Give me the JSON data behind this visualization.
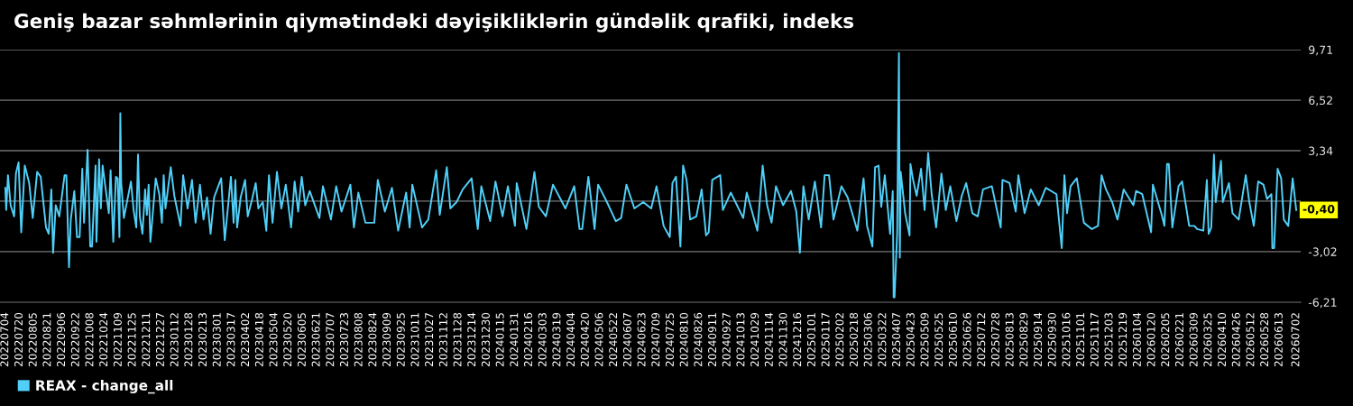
{
  "chart_data": {
    "type": "line",
    "title": "Geniş bazar səhmlərinin qiymətindəki dəyişikliklərin gündəlik qrafiki, indeks",
    "x": [
      "2022-07-04",
      "2022-07-05",
      "2022-07-07",
      "2022-07-10",
      "2022-07-14",
      "2022-07-16",
      "2022-07-19",
      "2022-07-22",
      "2022-07-26",
      "2022-07-31",
      "2022-08-04",
      "2022-08-09",
      "2022-08-13",
      "2022-08-19",
      "2022-08-22",
      "2022-08-25",
      "2022-08-27",
      "2022-08-30",
      "2022-09-03",
      "2022-09-09",
      "2022-09-11",
      "2022-09-14",
      "2022-09-16",
      "2022-09-20",
      "2022-09-23",
      "2022-09-26",
      "2022-09-29",
      "2022-10-01",
      "2022-10-05",
      "2022-10-08",
      "2022-10-10",
      "2022-10-14",
      "2022-10-15",
      "2022-10-18",
      "2022-10-20",
      "2022-10-22",
      "2022-10-29",
      "2022-10-31",
      "2022-11-03",
      "2022-11-06",
      "2022-11-08",
      "2022-11-10",
      "2022-11-11",
      "2022-11-12",
      "2022-11-15",
      "2022-11-23",
      "2022-11-26",
      "2022-11-29",
      "2022-12-01",
      "2022-12-03",
      "2022-12-06",
      "2022-12-09",
      "2022-12-11",
      "2022-12-13",
      "2022-12-15",
      "2022-12-21",
      "2022-12-25",
      "2022-12-28",
      "2022-12-30",
      "2023-01-01",
      "2023-01-07",
      "2023-01-11",
      "2023-01-18",
      "2023-01-21",
      "2023-01-26",
      "2023-01-31",
      "2023-02-04",
      "2023-02-09",
      "2023-02-13",
      "2023-02-17",
      "2023-02-21",
      "2023-02-25",
      "2023-03-05",
      "2023-03-09",
      "2023-03-16",
      "2023-03-19",
      "2023-03-21",
      "2023-03-23",
      "2023-03-27",
      "2023-04-01",
      "2023-04-04",
      "2023-04-09",
      "2023-04-13",
      "2023-04-16",
      "2023-04-21",
      "2023-04-25",
      "2023-04-28",
      "2023-05-02",
      "2023-05-07",
      "2023-05-12",
      "2023-05-17",
      "2023-05-23",
      "2023-05-27",
      "2023-05-31",
      "2023-06-04",
      "2023-06-08",
      "2023-06-13",
      "2023-06-24",
      "2023-06-28",
      "2023-07-07",
      "2023-07-13",
      "2023-07-19",
      "2023-07-29",
      "2023-08-02",
      "2023-08-07",
      "2023-08-15",
      "2023-08-25",
      "2023-08-29",
      "2023-09-06",
      "2023-09-14",
      "2023-09-21",
      "2023-09-30",
      "2023-10-04",
      "2023-10-07",
      "2023-10-18",
      "2023-10-25",
      "2023-11-03",
      "2023-11-07",
      "2023-11-15",
      "2023-11-19",
      "2023-11-26",
      "2023-12-03",
      "2023-12-13",
      "2023-12-20",
      "2023-12-24",
      "2024-01-03",
      "2024-01-09",
      "2024-01-17",
      "2024-01-23",
      "2024-01-31",
      "2024-02-02",
      "2024-02-13",
      "2024-02-22",
      "2024-02-27",
      "2024-03-06",
      "2024-03-14",
      "2024-03-28",
      "2024-04-07",
      "2024-04-13",
      "2024-04-16",
      "2024-04-23",
      "2024-04-30",
      "2024-05-04",
      "2024-05-14",
      "2024-05-24",
      "2024-05-30",
      "2024-06-05",
      "2024-06-14",
      "2024-06-24",
      "2024-07-03",
      "2024-07-09",
      "2024-07-17",
      "2024-07-24",
      "2024-07-27",
      "2024-07-31",
      "2024-08-05",
      "2024-08-08",
      "2024-08-12",
      "2024-08-16",
      "2024-08-23",
      "2024-08-29",
      "2024-09-03",
      "2024-09-06",
      "2024-09-10",
      "2024-09-19",
      "2024-09-22",
      "2024-10-01",
      "2024-10-15",
      "2024-10-19",
      "2024-10-31",
      "2024-11-06",
      "2024-11-11",
      "2024-11-16",
      "2024-11-21",
      "2024-11-29",
      "2024-12-08",
      "2024-12-14",
      "2024-12-18",
      "2024-12-22",
      "2024-12-28",
      "2025-01-04",
      "2025-01-11",
      "2025-01-15",
      "2025-01-20",
      "2025-01-25",
      "2025-02-03",
      "2025-02-10",
      "2025-02-21",
      "2025-02-28",
      "2025-03-04",
      "2025-03-10",
      "2025-03-13",
      "2025-03-17",
      "2025-03-20",
      "2025-03-24",
      "2025-03-30",
      "2025-04-02",
      "2025-04-03",
      "2025-04-04",
      "2025-04-07",
      "2025-04-09",
      "2025-04-10",
      "2025-04-11",
      "2025-04-16",
      "2025-04-21",
      "2025-04-22",
      "2025-04-25",
      "2025-04-29",
      "2025-05-04",
      "2025-05-08",
      "2025-05-12",
      "2025-05-16",
      "2025-05-21",
      "2025-05-27",
      "2025-06-01",
      "2025-06-06",
      "2025-06-13",
      "2025-06-19",
      "2025-06-24",
      "2025-07-01",
      "2025-07-07",
      "2025-07-13",
      "2025-07-23",
      "2025-08-02",
      "2025-08-04",
      "2025-08-12",
      "2025-08-19",
      "2025-08-22",
      "2025-08-29",
      "2025-09-05",
      "2025-09-14",
      "2025-09-22",
      "2025-10-04",
      "2025-10-10",
      "2025-10-13",
      "2025-10-16",
      "2025-10-20",
      "2025-10-27",
      "2025-11-04",
      "2025-11-13",
      "2025-11-20",
      "2025-11-24",
      "2025-11-29",
      "2025-12-06",
      "2025-12-12",
      "2025-12-19",
      "2025-12-30",
      "2026-01-02",
      "2026-01-09",
      "2026-01-19",
      "2026-01-21",
      "2026-01-31",
      "2026-02-03",
      "2026-02-06",
      "2026-02-08",
      "2026-02-12",
      "2026-02-19",
      "2026-02-23",
      "2026-03-03",
      "2026-03-09",
      "2026-03-12",
      "2026-03-19",
      "2026-03-23",
      "2026-03-25",
      "2026-03-28",
      "2026-03-31",
      "2026-04-02",
      "2026-04-08",
      "2026-04-10",
      "2026-04-17",
      "2026-04-21",
      "2026-04-28",
      "2026-05-06",
      "2026-05-10",
      "2026-05-15",
      "2026-05-20",
      "2026-05-26",
      "2026-05-30",
      "2026-06-04",
      "2026-06-05",
      "2026-06-07",
      "2026-06-11",
      "2026-06-15",
      "2026-06-18",
      "2026-06-23",
      "2026-06-28",
      "2026-07-02"
    ],
    "series": [
      {
        "name": "REAX - change_all",
        "color": "#50d0f8",
        "values": [
          1.0,
          -0.4,
          1.8,
          -0.1,
          -0.8,
          1.9,
          2.6,
          -1.8,
          2.4,
          1.3,
          -0.9,
          2.0,
          1.7,
          -1.5,
          -1.9,
          0.9,
          -3.1,
          -0.1,
          -0.8,
          1.8,
          1.8,
          -4.0,
          -1.0,
          0.8,
          -2.1,
          -2.1,
          2.2,
          -1.2,
          3.4,
          -2.7,
          -2.7,
          2.4,
          -2.4,
          2.8,
          -0.3,
          2.4,
          -0.6,
          2.1,
          -2.4,
          1.7,
          1.6,
          -2.1,
          5.7,
          1.3,
          -0.9,
          1.4,
          -0.4,
          -1.5,
          3.1,
          -0.8,
          -1.9,
          0.9,
          -0.7,
          1.2,
          -2.4,
          1.6,
          0.6,
          -1.2,
          1.8,
          -0.3,
          2.3,
          0.5,
          -1.4,
          1.8,
          -0.3,
          1.5,
          -1.2,
          1.2,
          -1.0,
          0.4,
          -1.9,
          0.4,
          1.6,
          -2.3,
          1.7,
          -1.2,
          1.5,
          -1.5,
          0.4,
          1.5,
          -0.8,
          0.3,
          1.3,
          -0.3,
          0.1,
          -1.7,
          1.8,
          -1.2,
          2.0,
          -0.3,
          1.2,
          -1.5,
          1.4,
          -0.5,
          1.7,
          -0.1,
          0.8,
          -0.9,
          1.1,
          -1.0,
          1.1,
          -0.5,
          1.2,
          -1.5,
          0.7,
          -1.2,
          -1.2,
          1.5,
          -0.5,
          1.0,
          -1.7,
          0.7,
          -1.5,
          1.2,
          -1.5,
          -1.0,
          2.1,
          -0.7,
          2.3,
          -0.3,
          0.1,
          0.9,
          1.6,
          -1.6,
          1.1,
          -1.1,
          1.4,
          -0.8,
          1.1,
          -1.4,
          1.3,
          -1.6,
          2.0,
          -0.2,
          -0.8,
          1.2,
          -0.3,
          1.1,
          -1.6,
          -1.6,
          1.7,
          -1.6,
          1.2,
          0.1,
          -1.1,
          -0.9,
          1.2,
          -0.3,
          0.1,
          -0.3,
          1.1,
          -1.4,
          -2.1,
          1.3,
          1.7,
          -2.7,
          2.4,
          1.5,
          -1.0,
          -0.8,
          0.9,
          -2.0,
          -1.8,
          1.5,
          1.8,
          -0.4,
          0.7,
          -0.9,
          0.7,
          -1.7,
          2.4,
          -0.1,
          -1.2,
          1.1,
          -0.1,
          0.8,
          -0.5,
          -3.1,
          1.1,
          -1.0,
          1.4,
          -1.5,
          1.8,
          1.8,
          -1.0,
          1.1,
          0.4,
          -1.7,
          1.6,
          -1.4,
          -2.7,
          2.3,
          2.4,
          -0.2,
          1.8,
          -1.9,
          0.8,
          -5.9,
          -5.9,
          -1.8,
          9.5,
          -3.4,
          2.0,
          -0.6,
          -2.0,
          2.5,
          1.5,
          0.5,
          2.2,
          -0.4,
          3.2,
          0.6,
          -1.5,
          1.9,
          -0.4,
          1.1,
          -1.1,
          0.5,
          1.3,
          -0.6,
          -0.8,
          0.9,
          1.1,
          -1.5,
          1.5,
          1.3,
          -0.5,
          1.8,
          -0.6,
          0.9,
          -0.1,
          1.0,
          0.6,
          -2.8,
          1.8,
          -0.6,
          1.1,
          1.6,
          -1.2,
          -1.6,
          -1.4,
          1.8,
          0.9,
          0.1,
          -1.0,
          0.9,
          -0.1,
          0.8,
          0.6,
          -1.8,
          1.2,
          -0.7,
          -1.4,
          2.5,
          2.5,
          -1.5,
          1.1,
          1.4,
          -1.4,
          -1.4,
          -1.6,
          -1.7,
          1.5,
          -1.9,
          -1.5,
          3.1,
          0.1,
          2.7,
          0.1,
          1.3,
          -0.6,
          -1.0,
          1.8,
          0.1,
          -1.4,
          1.4,
          1.2,
          0.3,
          0.6,
          -2.8,
          -2.8,
          2.2,
          1.6,
          -1.0,
          -1.4,
          1.6,
          -0.4
        ]
      }
    ],
    "xlim": [
      "2022-06-28",
      "2026-07-07"
    ],
    "xticks": [
      {
        "value": "2022-07-04",
        "label": "20220704"
      },
      {
        "value": "2022-07-20",
        "label": "20220720"
      },
      {
        "value": "2022-08-05",
        "label": "20220805"
      },
      {
        "value": "2022-08-21",
        "label": "20220821"
      },
      {
        "value": "2022-09-06",
        "label": "20220906"
      },
      {
        "value": "2022-09-22",
        "label": "20220922"
      },
      {
        "value": "2022-10-08",
        "label": "20221008"
      },
      {
        "value": "2022-10-24",
        "label": "20221024"
      },
      {
        "value": "2022-11-09",
        "label": "20221109"
      },
      {
        "value": "2022-11-25",
        "label": "20221125"
      },
      {
        "value": "2022-12-11",
        "label": "20221211"
      },
      {
        "value": "2022-12-27",
        "label": "20221227"
      },
      {
        "value": "2023-01-12",
        "label": "20230112"
      },
      {
        "value": "2023-01-28",
        "label": "20230128"
      },
      {
        "value": "2023-02-13",
        "label": "20230213"
      },
      {
        "value": "2023-03-01",
        "label": "20230301"
      },
      {
        "value": "2023-03-17",
        "label": "20230317"
      },
      {
        "value": "2023-04-02",
        "label": "20230402"
      },
      {
        "value": "2023-04-18",
        "label": "20230418"
      },
      {
        "value": "2023-05-04",
        "label": "20230504"
      },
      {
        "value": "2023-05-20",
        "label": "20230520"
      },
      {
        "value": "2023-06-05",
        "label": "20230605"
      },
      {
        "value": "2023-06-21",
        "label": "20230621"
      },
      {
        "value": "2023-07-07",
        "label": "20230707"
      },
      {
        "value": "2023-07-23",
        "label": "20230723"
      },
      {
        "value": "2023-08-08",
        "label": "20230808"
      },
      {
        "value": "2023-08-24",
        "label": "20230824"
      },
      {
        "value": "2023-09-09",
        "label": "20230909"
      },
      {
        "value": "2023-09-25",
        "label": "20230925"
      },
      {
        "value": "2023-10-11",
        "label": "20231011"
      },
      {
        "value": "2023-10-27",
        "label": "20231027"
      },
      {
        "value": "2023-11-12",
        "label": "20231112"
      },
      {
        "value": "2023-11-28",
        "label": "20231128"
      },
      {
        "value": "2023-12-14",
        "label": "20231214"
      },
      {
        "value": "2023-12-30",
        "label": "20231230"
      },
      {
        "value": "2024-01-15",
        "label": "20240115"
      },
      {
        "value": "2024-01-31",
        "label": "20240131"
      },
      {
        "value": "2024-02-16",
        "label": "20240216"
      },
      {
        "value": "2024-03-03",
        "label": "20240303"
      },
      {
        "value": "2024-03-19",
        "label": "20240319"
      },
      {
        "value": "2024-04-04",
        "label": "20240404"
      },
      {
        "value": "2024-04-20",
        "label": "20240420"
      },
      {
        "value": "2024-05-06",
        "label": "20240506"
      },
      {
        "value": "2024-05-22",
        "label": "20240522"
      },
      {
        "value": "2024-06-07",
        "label": "20240607"
      },
      {
        "value": "2024-06-23",
        "label": "20240623"
      },
      {
        "value": "2024-07-09",
        "label": "20240709"
      },
      {
        "value": "2024-07-25",
        "label": "20240725"
      },
      {
        "value": "2024-08-10",
        "label": "20240810"
      },
      {
        "value": "2024-08-26",
        "label": "20240826"
      },
      {
        "value": "2024-09-11",
        "label": "20240911"
      },
      {
        "value": "2024-09-27",
        "label": "20240927"
      },
      {
        "value": "2024-10-13",
        "label": "20241013"
      },
      {
        "value": "2024-10-29",
        "label": "20241029"
      },
      {
        "value": "2024-11-14",
        "label": "20241114"
      },
      {
        "value": "2024-11-30",
        "label": "20241130"
      },
      {
        "value": "2024-12-16",
        "label": "20241216"
      },
      {
        "value": "2025-01-01",
        "label": "20250101"
      },
      {
        "value": "2025-01-17",
        "label": "20250117"
      },
      {
        "value": "2025-02-02",
        "label": "20250202"
      },
      {
        "value": "2025-02-18",
        "label": "20250218"
      },
      {
        "value": "2025-03-06",
        "label": "20250306"
      },
      {
        "value": "2025-03-22",
        "label": "20250322"
      },
      {
        "value": "2025-04-07",
        "label": "20250407"
      },
      {
        "value": "2025-04-23",
        "label": "20250423"
      },
      {
        "value": "2025-05-09",
        "label": "20250509"
      },
      {
        "value": "2025-05-25",
        "label": "20250525"
      },
      {
        "value": "2025-06-10",
        "label": "20250610"
      },
      {
        "value": "2025-06-26",
        "label": "20250626"
      },
      {
        "value": "2025-07-12",
        "label": "20250712"
      },
      {
        "value": "2025-07-28",
        "label": "20250728"
      },
      {
        "value": "2025-08-13",
        "label": "20250813"
      },
      {
        "value": "2025-08-29",
        "label": "20250829"
      },
      {
        "value": "2025-09-14",
        "label": "20250914"
      },
      {
        "value": "2025-09-30",
        "label": "20250930"
      },
      {
        "value": "2025-10-16",
        "label": "20251016"
      },
      {
        "value": "2025-11-01",
        "label": "20251101"
      },
      {
        "value": "2025-11-17",
        "label": "20251117"
      },
      {
        "value": "2025-12-03",
        "label": "20251203"
      },
      {
        "value": "2025-12-19",
        "label": "20251219"
      },
      {
        "value": "2026-01-04",
        "label": "20260104"
      },
      {
        "value": "2026-01-20",
        "label": "20260120"
      },
      {
        "value": "2026-02-05",
        "label": "20260205"
      },
      {
        "value": "2026-02-21",
        "label": "20260221"
      },
      {
        "value": "2026-03-09",
        "label": "20260309"
      },
      {
        "value": "2026-03-25",
        "label": "20260325"
      },
      {
        "value": "2026-04-10",
        "label": "20260410"
      },
      {
        "value": "2026-04-26",
        "label": "20260426"
      },
      {
        "value": "2026-05-12",
        "label": "20260512"
      },
      {
        "value": "2026-05-28",
        "label": "20260528"
      },
      {
        "value": "2026-06-13",
        "label": "20260613"
      },
      {
        "value": "2026-07-02",
        "label": "20260702"
      }
    ],
    "ylim": [
      -6.21,
      9.71
    ],
    "yticks": [
      {
        "value": -6.21,
        "label": "-6,21"
      },
      {
        "value": -3.02,
        "label": "-3,02"
      },
      {
        "value": 0.16,
        "label": null
      },
      {
        "value": 3.34,
        "label": "3,34"
      },
      {
        "value": 6.52,
        "label": "6,52"
      },
      {
        "value": 9.71,
        "label": "9,71"
      }
    ],
    "grid": "y",
    "legend": "bottom left",
    "marker": "none",
    "line_style": "solid",
    "annotations": [
      {
        "text": "-0,40",
        "x": "2026-07-02",
        "y": -0.4
      }
    ]
  }
}
